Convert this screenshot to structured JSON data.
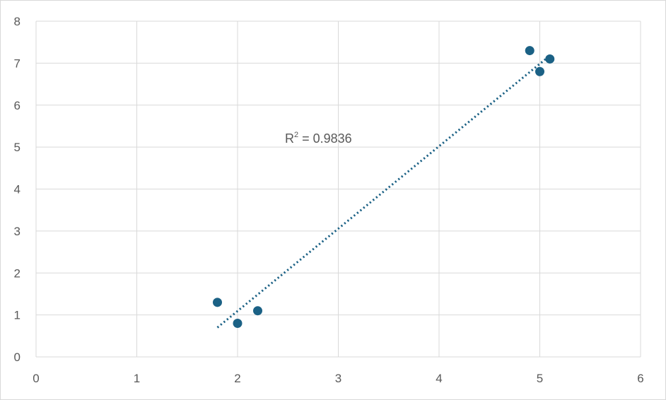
{
  "chart_data": {
    "type": "scatter",
    "title": "",
    "xlabel": "",
    "ylabel": "",
    "xlim": [
      0,
      6
    ],
    "ylim": [
      0,
      8
    ],
    "x_ticks": [
      "0",
      "1",
      "2",
      "3",
      "4",
      "5",
      "6"
    ],
    "y_ticks": [
      "0",
      "1",
      "2",
      "3",
      "4",
      "5",
      "6",
      "7",
      "8"
    ],
    "grid": true,
    "legend": "none",
    "series": [
      {
        "x": [
          1.8,
          2.0,
          2.2,
          4.9,
          5.0,
          5.1
        ],
        "y": [
          1.3,
          0.8,
          1.1,
          7.3,
          6.8,
          7.1
        ],
        "color": "#1b6185"
      }
    ],
    "trendline": {
      "type": "linear",
      "style": "dotted",
      "x_range": [
        1.8,
        5.1
      ],
      "y_range": [
        0.7,
        7.18
      ],
      "color": "#1b6185"
    },
    "annotation": {
      "base": "R",
      "superscript": "2",
      "text": " = 0.9836"
    },
    "colors": {
      "grid": "#d9d9d9",
      "tick_text": "#595959",
      "marker": "#1b6185"
    }
  }
}
